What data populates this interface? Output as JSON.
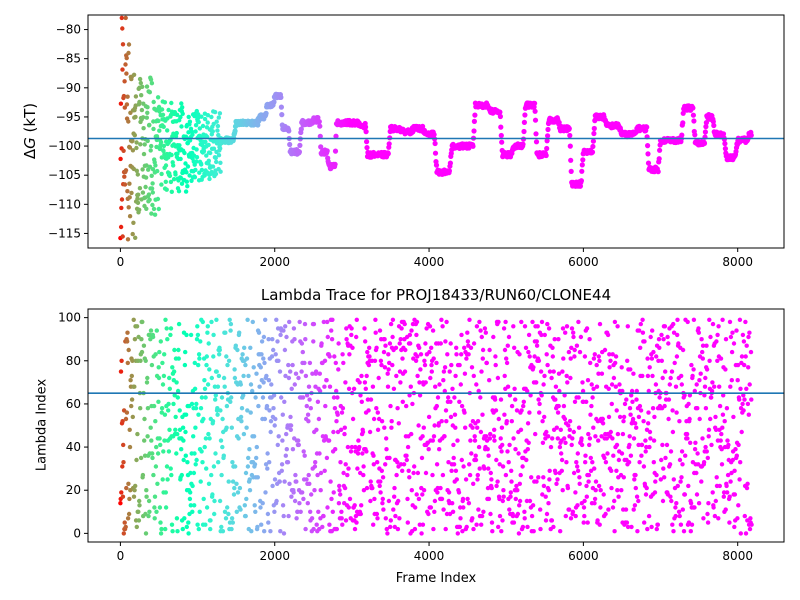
{
  "chart_data": [
    {
      "type": "scatter",
      "title": "",
      "xlabel": "",
      "ylabel_prefix": "Δ",
      "ylabel_symbol": "G",
      "ylabel_suffix": " (kT)",
      "xlim": [
        -420,
        8600
      ],
      "ylim": [
        -117.5,
        -77.5
      ],
      "x_ticks": [
        0,
        2000,
        4000,
        6000,
        8000
      ],
      "y_ticks": [
        -80,
        -85,
        -90,
        -95,
        -100,
        -105,
        -110,
        -115
      ],
      "x_tick_labels": [
        "0",
        "2000",
        "4000",
        "6000",
        "8000"
      ],
      "y_tick_labels": [
        "−80",
        "−85",
        "−90",
        "−95",
        "−100",
        "−105",
        "−110",
        "−115"
      ],
      "reference_line": {
        "y": -98.7,
        "color": "#1f77b4"
      },
      "colormap": "rainbow (red at frame 0 → violet at late frames)",
      "n_frames": 8200,
      "trace_summary": [
        {
          "x": 0,
          "y": -100
        },
        {
          "x": 150,
          "y": -100
        },
        {
          "x": 400,
          "y": -100
        },
        {
          "x": 800,
          "y": -99
        },
        {
          "x": 1100,
          "y": -99
        },
        {
          "x": 1300,
          "y": -99
        },
        {
          "x": 1500,
          "y": -96
        },
        {
          "x": 1700,
          "y": -96
        },
        {
          "x": 1800,
          "y": -95
        },
        {
          "x": 1900,
          "y": -93
        },
        {
          "x": 2000,
          "y": -91.5
        },
        {
          "x": 2100,
          "y": -97
        },
        {
          "x": 2200,
          "y": -101
        },
        {
          "x": 2350,
          "y": -96
        },
        {
          "x": 2500,
          "y": -95.5
        },
        {
          "x": 2600,
          "y": -101
        },
        {
          "x": 2700,
          "y": -103.5
        },
        {
          "x": 2800,
          "y": -96
        },
        {
          "x": 2950,
          "y": -96
        },
        {
          "x": 3100,
          "y": -96.5
        },
        {
          "x": 3200,
          "y": -101.5
        },
        {
          "x": 3350,
          "y": -101.5
        },
        {
          "x": 3500,
          "y": -97
        },
        {
          "x": 3650,
          "y": -97.5
        },
        {
          "x": 3800,
          "y": -97
        },
        {
          "x": 3950,
          "y": -98
        },
        {
          "x": 4100,
          "y": -104.5
        },
        {
          "x": 4300,
          "y": -100
        },
        {
          "x": 4450,
          "y": -100
        },
        {
          "x": 4600,
          "y": -93
        },
        {
          "x": 4800,
          "y": -94
        },
        {
          "x": 4950,
          "y": -101.5
        },
        {
          "x": 5100,
          "y": -100
        },
        {
          "x": 5250,
          "y": -93
        },
        {
          "x": 5400,
          "y": -101.5
        },
        {
          "x": 5550,
          "y": -95.5
        },
        {
          "x": 5700,
          "y": -97
        },
        {
          "x": 5850,
          "y": -106.5
        },
        {
          "x": 6000,
          "y": -101
        },
        {
          "x": 6150,
          "y": -95
        },
        {
          "x": 6300,
          "y": -96.5
        },
        {
          "x": 6500,
          "y": -98
        },
        {
          "x": 6700,
          "y": -97
        },
        {
          "x": 6850,
          "y": -104
        },
        {
          "x": 7000,
          "y": -99
        },
        {
          "x": 7150,
          "y": -99
        },
        {
          "x": 7300,
          "y": -93.5
        },
        {
          "x": 7450,
          "y": -99.5
        },
        {
          "x": 7600,
          "y": -95
        },
        {
          "x": 7700,
          "y": -98
        },
        {
          "x": 7850,
          "y": -102
        },
        {
          "x": 8000,
          "y": -99
        },
        {
          "x": 8150,
          "y": -98
        }
      ]
    },
    {
      "type": "scatter",
      "title": "Lambda Trace for PROJ18433/RUN60/CLONE44",
      "xlabel": "Frame Index",
      "ylabel": "Lambda Index",
      "xlim": [
        -420,
        8600
      ],
      "ylim": [
        -4,
        104
      ],
      "x_ticks": [
        0,
        2000,
        4000,
        6000,
        8000
      ],
      "y_ticks": [
        0,
        20,
        40,
        60,
        80,
        100
      ],
      "x_tick_labels": [
        "0",
        "2000",
        "4000",
        "6000",
        "8000"
      ],
      "y_tick_labels": [
        "0",
        "20",
        "40",
        "60",
        "80",
        "100"
      ],
      "reference_line": {
        "y": 65,
        "color": "#1f77b4"
      },
      "colormap": "rainbow (red at frame 0 → violet at late frames)",
      "n_frames": 8200,
      "lambda_range": [
        0,
        99
      ]
    }
  ]
}
